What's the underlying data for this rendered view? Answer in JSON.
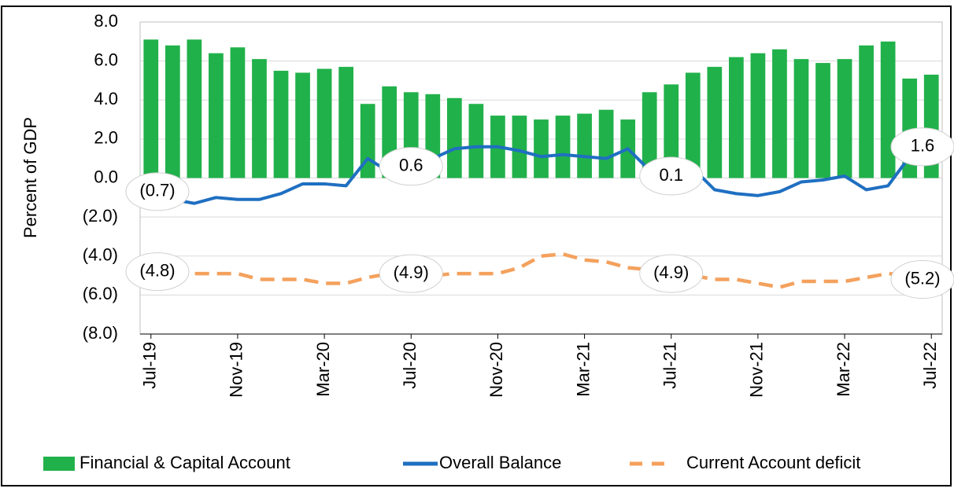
{
  "chart_data": {
    "type": "bar+line",
    "y_label": "Percent of GDP",
    "categories": [
      "Jul-19",
      null,
      null,
      null,
      "Nov-19",
      null,
      null,
      null,
      "Mar-20",
      null,
      null,
      null,
      "Jul-20",
      null,
      null,
      null,
      "Nov-20",
      null,
      null,
      null,
      "Mar-21",
      null,
      null,
      null,
      "Jul-21",
      null,
      null,
      null,
      "Nov-21",
      null,
      null,
      null,
      "Mar-22",
      null,
      null,
      null,
      "Jul-22"
    ],
    "ylim": [
      -8,
      8
    ],
    "yticks": [
      {
        "value": 8,
        "label": "8.0"
      },
      {
        "value": 6,
        "label": "6.0"
      },
      {
        "value": 4,
        "label": "4.0"
      },
      {
        "value": 2,
        "label": "2.0"
      },
      {
        "value": 0,
        "label": "0.0"
      },
      {
        "value": -2,
        "label": "(2.0)"
      },
      {
        "value": -4,
        "label": "(4.0)"
      },
      {
        "value": -6,
        "label": "(6.0)"
      },
      {
        "value": -8,
        "label": "(8.0)"
      }
    ],
    "grid": true,
    "series": [
      {
        "name": "Financial & Capital Account",
        "type": "bar",
        "color": "#21b14b",
        "values": [
          7.1,
          6.8,
          7.1,
          6.4,
          6.7,
          6.1,
          5.5,
          5.4,
          5.6,
          5.7,
          3.8,
          4.7,
          4.4,
          4.3,
          4.1,
          3.8,
          3.2,
          3.2,
          3.0,
          3.2,
          3.3,
          3.5,
          3.0,
          4.4,
          4.8,
          5.4,
          5.7,
          6.2,
          6.4,
          6.6,
          6.1,
          5.9,
          6.1,
          6.8,
          7.0,
          5.1,
          5.3
        ]
      },
      {
        "name": "Overall Balance",
        "type": "line",
        "color": "#1f6fc1",
        "values": [
          -0.7,
          -1.1,
          -1.3,
          -1.0,
          -1.1,
          -1.1,
          -0.8,
          -0.3,
          -0.3,
          -0.4,
          1.0,
          0.3,
          0.6,
          1.0,
          1.5,
          1.6,
          1.6,
          1.4,
          1.1,
          1.2,
          1.1,
          1.0,
          1.5,
          0.4,
          0.1,
          0.5,
          -0.6,
          -0.8,
          -0.9,
          -0.7,
          -0.2,
          -0.1,
          0.1,
          -0.6,
          -0.4,
          1.1,
          1.6
        ],
        "value_labels": [
          "(0.7)",
          null,
          null,
          null,
          null,
          null,
          null,
          null,
          null,
          null,
          null,
          null,
          "0.6",
          null,
          null,
          null,
          null,
          null,
          null,
          null,
          null,
          null,
          null,
          null,
          "0.1",
          null,
          null,
          null,
          null,
          null,
          null,
          null,
          null,
          null,
          null,
          null,
          "1.6"
        ]
      },
      {
        "name": "Current Account deficit",
        "type": "dashed-line",
        "color": "#f4a15d",
        "values": [
          -4.8,
          -4.9,
          -4.9,
          -4.9,
          -4.9,
          -5.2,
          -5.2,
          -5.2,
          -5.4,
          -5.4,
          -5.1,
          -4.9,
          -4.9,
          -5.0,
          -4.9,
          -4.9,
          -4.9,
          -4.6,
          -4.0,
          -3.9,
          -4.2,
          -4.3,
          -4.6,
          -4.7,
          -4.9,
          -5.0,
          -5.2,
          -5.2,
          -5.4,
          -5.6,
          -5.3,
          -5.3,
          -5.3,
          -5.1,
          -4.9,
          -5.0,
          -5.2
        ],
        "value_labels": [
          "(4.8)",
          null,
          null,
          null,
          null,
          null,
          null,
          null,
          null,
          null,
          null,
          null,
          "(4.9)",
          null,
          null,
          null,
          null,
          null,
          null,
          null,
          null,
          null,
          null,
          null,
          "(4.9)",
          null,
          null,
          null,
          null,
          null,
          null,
          null,
          null,
          null,
          null,
          null,
          "(5.2)"
        ]
      }
    ]
  }
}
